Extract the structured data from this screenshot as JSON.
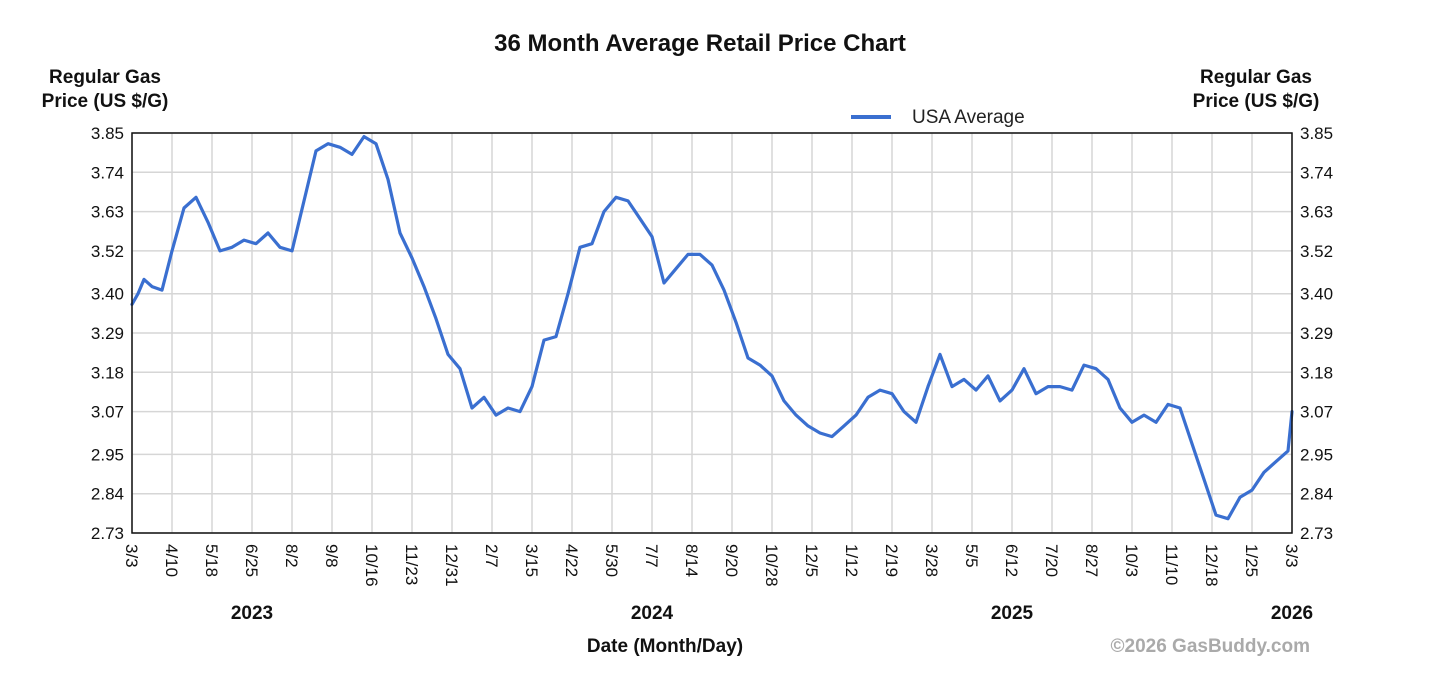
{
  "chart_data": {
    "type": "line",
    "title": "36 Month Average Retail Price Chart",
    "ylabel_left": [
      "Regular Gas",
      "Price (US $/G)"
    ],
    "ylabel_right": [
      "Regular Gas",
      "Price (US $/G)"
    ],
    "xlabel": "Date (Month/Day)",
    "ylim": [
      2.73,
      3.85
    ],
    "yticks": [
      "3.85",
      "3.74",
      "3.63",
      "3.52",
      "3.40",
      "3.29",
      "3.18",
      "3.07",
      "2.95",
      "2.84",
      "2.73"
    ],
    "xticks": [
      "3/3",
      "4/10",
      "5/18",
      "6/25",
      "8/2",
      "9/8",
      "10/16",
      "11/23",
      "12/31",
      "2/7",
      "3/15",
      "4/22",
      "5/30",
      "7/7",
      "8/14",
      "9/20",
      "10/28",
      "12/5",
      "1/12",
      "2/19",
      "3/28",
      "5/5",
      "6/12",
      "7/20",
      "8/27",
      "10/3",
      "11/10",
      "12/18",
      "1/25",
      "3/3"
    ],
    "years": [
      {
        "label": "2023",
        "tick": 3
      },
      {
        "label": "2024",
        "tick": 13
      },
      {
        "label": "2025",
        "tick": 22
      },
      {
        "label": "2026",
        "tick": 29
      }
    ],
    "grid": true,
    "legend": {
      "position": "top-right"
    },
    "series": [
      {
        "name": "USA Average",
        "color": "#3a6fd0",
        "x": [
          0,
          0.15,
          0.3,
          0.5,
          0.75,
          1.0,
          1.3,
          1.6,
          1.9,
          2.2,
          2.5,
          2.8,
          3.1,
          3.4,
          3.7,
          4.0,
          4.3,
          4.6,
          4.9,
          5.2,
          5.5,
          5.8,
          6.1,
          6.4,
          6.7,
          7.0,
          7.3,
          7.6,
          7.9,
          8.2,
          8.5,
          8.8,
          9.1,
          9.4,
          9.7,
          10.0,
          10.3,
          10.6,
          10.9,
          11.2,
          11.5,
          11.8,
          12.1,
          12.4,
          12.7,
          13.0,
          13.3,
          13.6,
          13.9,
          14.2,
          14.5,
          14.8,
          15.1,
          15.4,
          15.7,
          16.0,
          16.3,
          16.6,
          16.9,
          17.2,
          17.5,
          17.8,
          18.1,
          18.4,
          18.7,
          19.0,
          19.3,
          19.6,
          19.9,
          20.2,
          20.5,
          20.8,
          21.1,
          21.4,
          21.7,
          22.0,
          22.3,
          22.6,
          22.9,
          23.2,
          23.5,
          23.8,
          24.1,
          24.4,
          24.7,
          25.0,
          25.3,
          25.6,
          25.9,
          26.2,
          26.5,
          26.8,
          27.1,
          27.4,
          27.7,
          28.0,
          28.3,
          28.6,
          28.9,
          29.0
        ],
        "values": [
          3.37,
          3.4,
          3.44,
          3.42,
          3.41,
          3.52,
          3.64,
          3.67,
          3.6,
          3.52,
          3.53,
          3.55,
          3.54,
          3.57,
          3.53,
          3.52,
          3.66,
          3.8,
          3.82,
          3.81,
          3.79,
          3.84,
          3.82,
          3.72,
          3.57,
          3.5,
          3.42,
          3.33,
          3.23,
          3.19,
          3.08,
          3.11,
          3.06,
          3.08,
          3.07,
          3.14,
          3.27,
          3.28,
          3.4,
          3.53,
          3.54,
          3.63,
          3.67,
          3.66,
          3.61,
          3.56,
          3.43,
          3.47,
          3.51,
          3.51,
          3.48,
          3.41,
          3.32,
          3.22,
          3.2,
          3.17,
          3.1,
          3.06,
          3.03,
          3.01,
          3.0,
          3.03,
          3.06,
          3.11,
          3.13,
          3.12,
          3.07,
          3.04,
          3.14,
          3.23,
          3.14,
          3.16,
          3.13,
          3.17,
          3.1,
          3.13,
          3.19,
          3.12,
          3.14,
          3.14,
          3.13,
          3.2,
          3.19,
          3.16,
          3.08,
          3.04,
          3.06,
          3.04,
          3.09,
          3.08,
          2.98,
          2.88,
          2.78,
          2.77,
          2.83,
          2.85,
          2.9,
          2.93,
          2.96,
          3.07
        ]
      }
    ]
  },
  "watermark": "©2026 GasBuddy.com"
}
